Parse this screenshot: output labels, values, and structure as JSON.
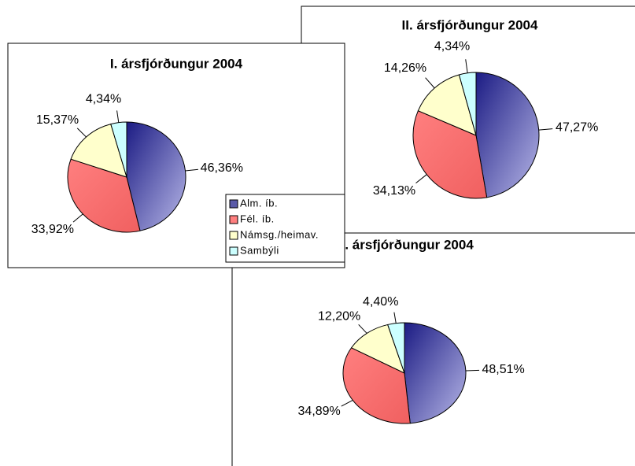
{
  "chart_data": [
    {
      "type": "pie",
      "title": "I. ársfjórðungur 2004",
      "categories": [
        "Alm. íb.",
        "Fél. íb.",
        "Námsg./heimav.",
        "Sambýli"
      ],
      "values": [
        46.36,
        33.92,
        15.37,
        4.34
      ],
      "value_labels": [
        "46,36%",
        "33,92%",
        "15,37%",
        "4,34%"
      ],
      "colors": [
        "#1c1c84",
        "#ff7f7f",
        "#ffffcc",
        "#ccffff"
      ],
      "legend": "bottom-right"
    },
    {
      "type": "pie",
      "title": "II. ársfjórðungur 2004",
      "values": [
        47.27,
        34.13,
        14.26,
        4.34
      ],
      "value_labels": [
        "47,27%",
        "34,13%",
        "14,26%",
        "4,34%"
      ],
      "colors": [
        "#1c1c84",
        "#ff7f7f",
        "#ffffcc",
        "#ccffff"
      ]
    },
    {
      "type": "pie",
      "title": "III. ársfjórðungur 2004",
      "values": [
        48.51,
        34.89,
        12.2,
        4.4
      ],
      "value_labels": [
        "48,51%",
        "34,89%",
        "12,20%",
        "4,40%"
      ],
      "colors": [
        "#1c1c84",
        "#ff7f7f",
        "#ffffcc",
        "#ccffff"
      ]
    }
  ]
}
